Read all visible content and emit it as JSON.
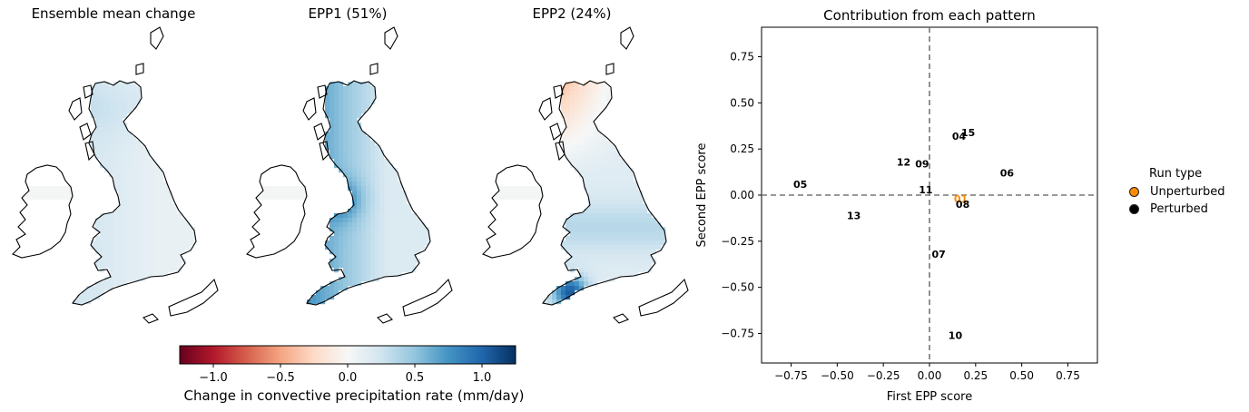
{
  "maps": [
    {
      "title": "Ensemble mean change",
      "mode": "mean"
    },
    {
      "title": "EPP1 (51%)",
      "mode": "epp1"
    },
    {
      "title": "EPP2 (24%)",
      "mode": "epp2"
    }
  ],
  "colorbar": {
    "label": "Change in convective precipitation rate (mm/day)",
    "range": [
      -1.25,
      1.25
    ],
    "ticks": [
      "−1.0",
      "−0.5",
      "0.0",
      "0.5",
      "1.0"
    ],
    "tick_values": [
      -1.0,
      -0.5,
      0.0,
      0.5,
      1.0
    ],
    "colormap": "RdBu"
  },
  "chart_data": {
    "type": "scatter",
    "title": "Contribution from each pattern",
    "xlabel": "First EPP score",
    "ylabel": "Second EPP score",
    "xlim": [
      -0.91,
      0.91
    ],
    "ylim": [
      -0.91,
      0.91
    ],
    "xticks": [
      -0.75,
      -0.5,
      -0.25,
      0.0,
      0.25,
      0.5,
      0.75
    ],
    "yticks": [
      -0.75,
      -0.5,
      -0.25,
      0.0,
      0.25,
      0.5,
      0.75
    ],
    "xtick_labels": [
      "−0.75",
      "−0.50",
      "−0.25",
      "0.00",
      "0.25",
      "0.50",
      "0.75"
    ],
    "ytick_labels": [
      "−0.75",
      "−0.50",
      "−0.25",
      "0.00",
      "0.25",
      "0.50",
      "0.75"
    ],
    "reference_lines": {
      "x": 0,
      "y": 0,
      "style": "dashed"
    },
    "points": [
      {
        "label": "01",
        "x": 0.17,
        "y": -0.02,
        "run_type": "Unperturbed"
      },
      {
        "label": "04",
        "x": 0.16,
        "y": 0.32,
        "run_type": "Perturbed"
      },
      {
        "label": "05",
        "x": -0.7,
        "y": 0.06,
        "run_type": "Perturbed"
      },
      {
        "label": "06",
        "x": 0.42,
        "y": 0.12,
        "run_type": "Perturbed"
      },
      {
        "label": "07",
        "x": 0.05,
        "y": -0.32,
        "run_type": "Perturbed"
      },
      {
        "label": "08",
        "x": 0.18,
        "y": -0.05,
        "run_type": "Perturbed"
      },
      {
        "label": "09",
        "x": -0.04,
        "y": 0.17,
        "run_type": "Perturbed"
      },
      {
        "label": "10",
        "x": 0.14,
        "y": -0.76,
        "run_type": "Perturbed"
      },
      {
        "label": "11",
        "x": -0.02,
        "y": 0.03,
        "run_type": "Perturbed"
      },
      {
        "label": "12",
        "x": -0.14,
        "y": 0.18,
        "run_type": "Perturbed"
      },
      {
        "label": "13",
        "x": -0.41,
        "y": -0.11,
        "run_type": "Perturbed"
      },
      {
        "label": "15",
        "x": 0.21,
        "y": 0.34,
        "run_type": "Perturbed"
      }
    ],
    "legend": {
      "title": "Run type",
      "placement": "right",
      "entries": [
        {
          "name": "Unperturbed",
          "color": "#ff8c00"
        },
        {
          "name": "Perturbed",
          "color": "#000000"
        }
      ]
    }
  }
}
